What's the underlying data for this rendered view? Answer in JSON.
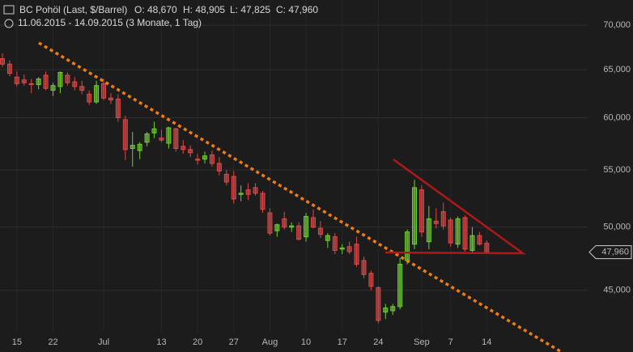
{
  "chart_data": {
    "type": "candlestick",
    "title": "BC Pohöl (Last, $/Barrel)",
    "ohlc_labels": [
      "O: 48,670",
      "H: 48,905",
      "L: 47,825",
      "C: 47,960"
    ],
    "subtitle": "11.06.2015 - 14.09.2015 (3 Monate, 1 Tag)",
    "log_scale": true,
    "grid": true,
    "up_color": "#6fcf2f",
    "down_color": "#e04848",
    "categories": [
      null,
      null,
      "15",
      null,
      null,
      null,
      null,
      "22",
      null,
      null,
      null,
      null,
      null,
      null,
      "Jul",
      null,
      null,
      null,
      null,
      null,
      null,
      null,
      "13",
      null,
      null,
      null,
      null,
      "20",
      null,
      null,
      null,
      null,
      "27",
      null,
      null,
      null,
      null,
      "Aug",
      null,
      null,
      null,
      null,
      "10",
      null,
      null,
      null,
      null,
      "17",
      null,
      null,
      null,
      null,
      "24",
      null,
      null,
      null,
      null,
      null,
      "Sep",
      null,
      null,
      null,
      "7",
      null,
      null,
      null,
      null,
      "14"
    ],
    "series": [
      {
        "open": [
          66.2,
          65.6,
          64.2,
          63.9,
          63.5,
          63.4,
          64.4,
          62.8,
          63.2,
          64.4,
          63.7,
          63.2,
          62.4,
          61.6,
          63.5,
          62.0,
          61.9,
          59.8,
          57.0,
          56.8,
          57.6,
          58.5,
          58.0,
          57.5,
          58.9,
          57.2,
          56.9,
          56.0,
          56.0,
          56.4,
          55.6,
          54.6,
          54.4,
          52.8,
          53.2,
          53.4,
          52.9,
          51.2,
          49.7,
          50.7,
          50.0,
          50.1,
          49.2,
          50.8,
          49.9,
          48.9,
          49.2,
          48.2,
          48.4,
          48.6,
          47.3,
          46.3,
          45.2,
          43.4,
          43.5,
          43.8,
          47.3,
          48.6,
          53.2,
          48.8,
          50.5,
          51.3,
          50.6,
          48.6,
          50.8,
          48.1,
          49.3,
          48.67
        ],
        "high": [
          66.8,
          66.0,
          64.8,
          64.5,
          64.0,
          64.2,
          64.8,
          63.6,
          64.8,
          64.7,
          64.2,
          63.8,
          62.8,
          63.8,
          64.0,
          62.5,
          62.4,
          60.2,
          58.6,
          57.6,
          58.6,
          59.6,
          58.8,
          59.1,
          59.0,
          57.8,
          57.3,
          56.5,
          56.7,
          56.8,
          56.2,
          55.0,
          54.9,
          53.6,
          53.8,
          53.8,
          53.1,
          51.6,
          50.3,
          51.3,
          50.4,
          50.4,
          51.2,
          51.5,
          50.5,
          49.5,
          49.5,
          48.6,
          48.8,
          49.2,
          47.6,
          46.5,
          45.3,
          44.0,
          44.0,
          47.5,
          49.8,
          54.1,
          53.6,
          51.8,
          51.6,
          52.1,
          50.8,
          50.9,
          51.0,
          50.0,
          49.6,
          48.905
        ],
        "low": [
          65.3,
          64.3,
          63.2,
          63.3,
          62.5,
          62.9,
          62.8,
          62.2,
          62.5,
          63.3,
          62.8,
          62.4,
          61.3,
          61.4,
          61.8,
          61.4,
          59.6,
          55.9,
          55.3,
          56.0,
          57.2,
          58.0,
          57.6,
          57.0,
          56.7,
          56.5,
          56.2,
          55.5,
          55.6,
          55.3,
          54.5,
          53.6,
          52.0,
          52.2,
          52.3,
          52.7,
          51.2,
          49.3,
          49.2,
          49.8,
          49.6,
          48.9,
          48.8,
          49.9,
          49.1,
          48.3,
          47.8,
          47.8,
          47.8,
          46.8,
          45.9,
          45.0,
          42.6,
          42.9,
          43.2,
          43.6,
          47.0,
          48.2,
          49.2,
          48.2,
          49.9,
          49.8,
          48.4,
          48.3,
          48.0,
          47.9,
          48.5,
          47.825
        ],
        "close": [
          65.6,
          64.6,
          63.5,
          63.6,
          63.4,
          64.0,
          63.0,
          63.3,
          64.7,
          63.6,
          63.2,
          62.8,
          61.6,
          63.3,
          62.0,
          61.8,
          60.0,
          56.9,
          57.3,
          57.4,
          58.4,
          58.9,
          57.8,
          59.0,
          57.0,
          56.9,
          56.6,
          55.9,
          56.3,
          55.6,
          54.9,
          53.9,
          52.4,
          52.9,
          52.8,
          52.9,
          51.5,
          49.5,
          50.2,
          50.0,
          50.1,
          49.0,
          50.9,
          50.0,
          49.4,
          49.3,
          48.1,
          48.3,
          48.0,
          47.0,
          46.2,
          45.3,
          42.8,
          43.7,
          43.8,
          47.0,
          49.6,
          53.4,
          49.6,
          50.7,
          50.3,
          50.1,
          48.7,
          50.7,
          48.2,
          49.3,
          48.6,
          47.96
        ]
      }
    ],
    "ylim": [
      42,
      73
    ],
    "yticks": [
      {
        "value": 45,
        "label": "45,000"
      },
      {
        "value": 50,
        "label": "50,000"
      },
      {
        "value": 55,
        "label": "55,000"
      },
      {
        "value": 60,
        "label": "60,000"
      },
      {
        "value": 65,
        "label": "65,000"
      },
      {
        "value": 70,
        "label": "70,000"
      }
    ],
    "last_value": {
      "value": 47.96,
      "label": "47,960"
    }
  }
}
